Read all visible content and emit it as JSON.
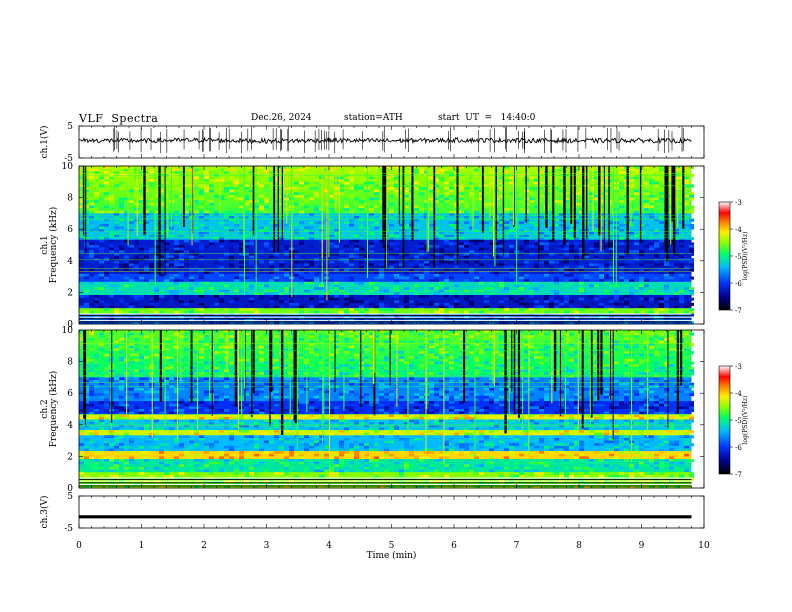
{
  "header": {
    "title": "VLF  Spectra",
    "date": "Dec.26, 2024",
    "station": "station=ATH",
    "start_ut": "start  UT  =   14:40:0"
  },
  "chart_data": [
    {
      "type": "line",
      "name": "ch1-voltage",
      "ylabel": "ch.1(V)",
      "ylim": [
        -5,
        5
      ],
      "yticks": [
        "5",
        "-5"
      ],
      "x": [
        0,
        1,
        2,
        3,
        4,
        5,
        6,
        7,
        8,
        9,
        9.8
      ],
      "y": [
        0.5,
        0.4,
        0.6,
        0.3,
        0.5,
        0.4,
        0.6,
        0.5,
        0.4,
        0.5,
        0.3
      ]
    },
    {
      "type": "heatmap",
      "name": "ch1-spectrogram",
      "ylabel": "ch.1\nFrequency  (kHz)",
      "ylim": [
        0,
        10
      ],
      "yticks": [
        "0",
        "2",
        "4",
        "6",
        "8",
        "10"
      ],
      "colorbar": {
        "label": "log(PSD)(V²/Hz)",
        "range": [
          -7,
          -3
        ],
        "ticks": [
          "-3",
          "-4",
          "-5",
          "-6",
          "-7"
        ]
      }
    },
    {
      "type": "heatmap",
      "name": "ch2-spectrogram",
      "ylabel": "ch.2\nFrequency  (kHz)",
      "ylim": [
        0,
        10
      ],
      "yticks": [
        "0",
        "2",
        "4",
        "6",
        "8",
        "10"
      ],
      "colorbar": {
        "label": "log(PSD)(V²/Hz)",
        "range": [
          -7,
          -3
        ],
        "ticks": [
          "-3",
          "-4",
          "-5",
          "-6",
          "-7"
        ]
      }
    },
    {
      "type": "line",
      "name": "ch3-voltage",
      "ylabel": "ch.3(V)",
      "ylim": [
        -5,
        5
      ],
      "yticks": [
        "5",
        "-5"
      ],
      "x": [
        0,
        9.8
      ],
      "y": [
        -1.5,
        -1.5
      ]
    }
  ],
  "xaxis": {
    "label": "Time  (min)",
    "range": [
      0,
      10
    ],
    "ticks": [
      "0",
      "1",
      "2",
      "3",
      "4",
      "5",
      "6",
      "7",
      "8",
      "9",
      "10"
    ]
  }
}
